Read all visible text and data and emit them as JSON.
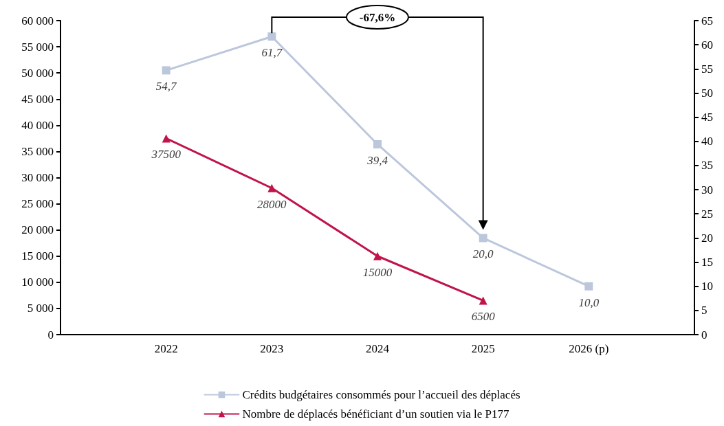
{
  "chart_data": {
    "type": "line",
    "annotations": [
      "-67,6%"
    ],
    "categories": [
      null,
      "2022",
      "2023",
      "2024",
      "2025",
      "2026 (p)",
      null
    ],
    "series": [
      {
        "name": "Crédits budgétaires consommés pour l’accueil des déplacés",
        "color": "#bcc7dc",
        "axis": "y2",
        "marker": "square",
        "values": [
          null,
          54.7,
          61.7,
          39.4,
          20.0,
          10.0,
          null
        ],
        "value_labels": [
          null,
          "54,7",
          "61,7",
          "39,4",
          "20,0",
          "10,0",
          null
        ]
      },
      {
        "name": "Nombre de déplacés bénéficiant d’un soutien via le P177",
        "color": "#c0144a",
        "marker": "triangle",
        "values": [
          null,
          37500,
          28000,
          15000,
          6500,
          null,
          null
        ],
        "value_labels": [
          null,
          "37500",
          "28000",
          "15000",
          "6500",
          null,
          null
        ]
      }
    ],
    "ylim": [
      0,
      60000
    ],
    "yticks": [
      0,
      {
        "value": 5000,
        "label": "5 000"
      },
      {
        "value": 10000,
        "label": "10 000"
      },
      {
        "value": 15000,
        "label": "15 000"
      },
      {
        "value": 20000,
        "label": "20 000"
      },
      {
        "value": 25000,
        "label": "25 000"
      },
      {
        "value": 30000,
        "label": "30 000"
      },
      {
        "value": 35000,
        "label": "35 000"
      },
      {
        "value": 40000,
        "label": "40 000"
      },
      {
        "value": 45000,
        "label": "45 000"
      },
      {
        "value": 50000,
        "label": "50 000"
      },
      {
        "value": 55000,
        "label": "55 000"
      },
      {
        "value": 60000,
        "label": "60 000"
      }
    ],
    "y2lim": [
      0,
      65
    ],
    "y2ticks": [
      0,
      5,
      10,
      15,
      20,
      25,
      30,
      35,
      40,
      45,
      50,
      55,
      60,
      65
    ],
    "grid": false,
    "legend": "bottom"
  }
}
